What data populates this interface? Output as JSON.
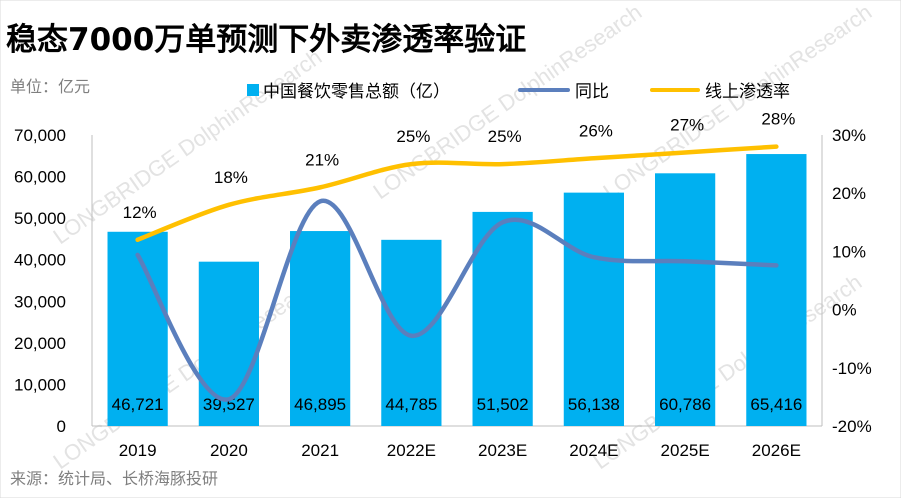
{
  "title": "稳态7000万单预测下外卖渗透率验证",
  "unit_label": "单位：亿元",
  "source_label": "来源：统计局、长桥海豚投研",
  "watermark": "LONGBRIDGE DolphinResearch",
  "colors": {
    "bar": "#00b0f0",
    "yoy": "#5b7fbd",
    "penetration": "#ffc000",
    "axis": "#bfbfbf"
  },
  "chart_data": {
    "type": "bar",
    "categories": [
      "2019",
      "2020",
      "2021",
      "2022E",
      "2023E",
      "2024E",
      "2025E",
      "2026E"
    ],
    "series": [
      {
        "name": "中国餐饮零售总额（亿）",
        "type": "bar",
        "axis": "left",
        "values": [
          46721,
          39527,
          46895,
          44785,
          51502,
          56138,
          60786,
          65416
        ],
        "labels": [
          "46,721",
          "39,527",
          "46,895",
          "44,785",
          "51,502",
          "56,138",
          "60,786",
          "65,416"
        ]
      },
      {
        "name": "同比",
        "type": "line",
        "axis": "right",
        "values": [
          9.4,
          -15.4,
          18.6,
          -4.5,
          15.0,
          9.0,
          8.3,
          7.6
        ]
      },
      {
        "name": "线上渗透率",
        "type": "line",
        "axis": "right",
        "values": [
          12,
          18,
          21,
          25,
          25,
          26,
          27,
          28
        ],
        "labels": [
          "12%",
          "18%",
          "21%",
          "25%",
          "25%",
          "26%",
          "27%",
          "28%"
        ]
      }
    ],
    "left_axis": {
      "min": 0,
      "max": 70000,
      "step": 10000,
      "tick_labels": [
        "0",
        "10,000",
        "20,000",
        "30,000",
        "40,000",
        "50,000",
        "60,000",
        "70,000"
      ]
    },
    "right_axis": {
      "min": -20,
      "max": 30,
      "step": 10,
      "tick_labels": [
        "-20%",
        "-10%",
        "0%",
        "10%",
        "20%",
        "30%"
      ]
    },
    "legend_position": "top"
  }
}
